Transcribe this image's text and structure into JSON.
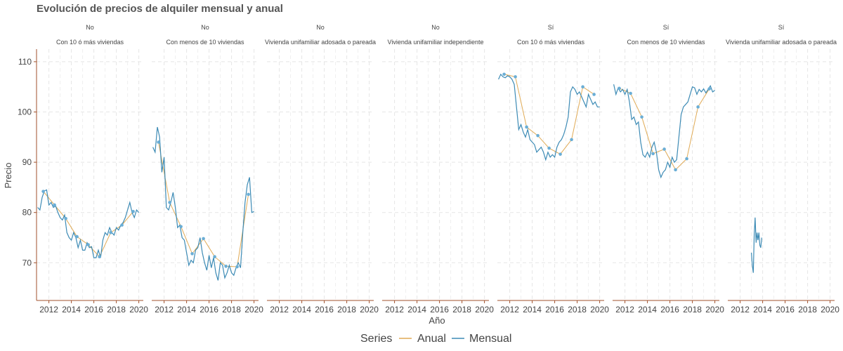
{
  "chart_data": {
    "type": "line",
    "title": "Evolución de precios de alquiler mensual y anual",
    "xlabel": "Año",
    "ylabel": "Precio",
    "xlim": [
      2010.9,
      2020.4
    ],
    "ylim": [
      62.5,
      112.5
    ],
    "xticks": [
      2012,
      2014,
      2016,
      2018,
      2020
    ],
    "yticks": [
      70,
      80,
      90,
      100,
      110
    ],
    "grid": true,
    "legend": {
      "title": "Series",
      "position": "bottom",
      "entries": [
        {
          "name": "Anual",
          "color": "#E0AA55"
        },
        {
          "name": "Mensual",
          "color": "#3D8BB5"
        }
      ]
    },
    "colors": {
      "anual": "#E0AA55",
      "mensual": "#3D8BB5",
      "point": "#6AAED6",
      "axis": "#A0522D",
      "grid": "#E5E5E5"
    },
    "panels": [
      {
        "row1": "No",
        "row2": "Con 10 ó más viviendas",
        "anual": {
          "x": [
            2011.5,
            2012.5,
            2013.5,
            2014.5,
            2015.5,
            2016.5,
            2017.5,
            2018.5,
            2019.5
          ],
          "y": [
            84.2,
            81.5,
            78.8,
            75.2,
            73.6,
            71.2,
            76.0,
            77.5,
            80.2
          ]
        },
        "mensual": {
          "x": [
            2011.0,
            2011.2,
            2011.4,
            2011.6,
            2011.8,
            2012.0,
            2012.2,
            2012.4,
            2012.6,
            2012.8,
            2013.0,
            2013.2,
            2013.4,
            2013.6,
            2013.8,
            2014.0,
            2014.2,
            2014.4,
            2014.6,
            2014.8,
            2015.0,
            2015.2,
            2015.4,
            2015.6,
            2015.8,
            2016.0,
            2016.2,
            2016.4,
            2016.6,
            2016.8,
            2017.0,
            2017.2,
            2017.4,
            2017.6,
            2017.8,
            2018.0,
            2018.2,
            2018.4,
            2018.6,
            2018.8,
            2019.0,
            2019.2,
            2019.4,
            2019.6,
            2019.8,
            2020.0
          ],
          "y": [
            81.0,
            80.5,
            83.0,
            84.3,
            84.5,
            81.5,
            82.0,
            81.0,
            81.3,
            80.0,
            79.0,
            78.5,
            79.5,
            76.0,
            75.0,
            74.5,
            76.0,
            75.0,
            73.0,
            74.5,
            72.5,
            72.5,
            74.0,
            73.0,
            73.2,
            71.0,
            71.0,
            72.5,
            71.0,
            74.5,
            76.0,
            75.5,
            77.0,
            76.0,
            75.5,
            77.0,
            76.5,
            77.5,
            78.0,
            79.0,
            80.5,
            82.0,
            80.0,
            79.0,
            80.5,
            80.0
          ]
        }
      },
      {
        "row1": "No",
        "row2": "Con menos de 10 viviendas",
        "anual": {
          "x": [
            2011.5,
            2012.5,
            2013.5,
            2014.5,
            2015.5,
            2016.5,
            2017.5,
            2018.5,
            2019.5
          ],
          "y": [
            94.0,
            82.0,
            77.2,
            71.8,
            74.8,
            71.2,
            69.3,
            69.2,
            83.6
          ]
        },
        "mensual": {
          "x": [
            2011.0,
            2011.2,
            2011.4,
            2011.6,
            2011.8,
            2012.0,
            2012.2,
            2012.4,
            2012.6,
            2012.8,
            2013.0,
            2013.2,
            2013.4,
            2013.6,
            2013.8,
            2014.0,
            2014.2,
            2014.4,
            2014.6,
            2014.8,
            2015.0,
            2015.2,
            2015.4,
            2015.6,
            2015.8,
            2016.0,
            2016.2,
            2016.4,
            2016.6,
            2016.8,
            2017.0,
            2017.2,
            2017.4,
            2017.6,
            2017.8,
            2018.0,
            2018.2,
            2018.4,
            2018.6,
            2018.8,
            2019.0,
            2019.2,
            2019.4,
            2019.6,
            2019.8,
            2020.0
          ],
          "y": [
            93.0,
            92.0,
            97.0,
            95.0,
            88.0,
            91.0,
            81.0,
            80.5,
            82.0,
            84.0,
            81.0,
            77.0,
            77.5,
            75.0,
            74.5,
            72.0,
            69.5,
            70.5,
            70.0,
            72.5,
            73.0,
            75.0,
            72.0,
            70.0,
            68.5,
            71.5,
            69.0,
            71.0,
            68.0,
            66.5,
            70.0,
            69.5,
            67.0,
            68.0,
            69.5,
            68.0,
            67.5,
            69.0,
            70.0,
            69.0,
            76.0,
            82.0,
            85.5,
            87.0,
            80.0,
            80.2
          ]
        }
      },
      {
        "row1": "No",
        "row2": "Vivienda unifamiliar adosada o pareada",
        "anual": {
          "x": [],
          "y": []
        },
        "mensual": {
          "x": [],
          "y": []
        }
      },
      {
        "row1": "No",
        "row2": "Vivienda unifamiliar independiente",
        "anual": {
          "x": [],
          "y": []
        },
        "mensual": {
          "x": [],
          "y": []
        }
      },
      {
        "row1": "Sí",
        "row2": "Con 10 ó más viviendas",
        "anual": {
          "x": [
            2011.5,
            2012.5,
            2013.5,
            2014.5,
            2015.5,
            2016.5,
            2017.5,
            2018.5,
            2019.5
          ],
          "y": [
            107.5,
            107.0,
            97.0,
            95.3,
            92.8,
            91.6,
            94.5,
            105.0,
            103.5
          ]
        },
        "mensual": {
          "x": [
            2011.0,
            2011.2,
            2011.4,
            2011.6,
            2011.8,
            2012.0,
            2012.2,
            2012.4,
            2012.6,
            2012.8,
            2013.0,
            2013.2,
            2013.4,
            2013.6,
            2013.8,
            2014.0,
            2014.2,
            2014.4,
            2014.6,
            2014.8,
            2015.0,
            2015.2,
            2015.4,
            2015.6,
            2015.8,
            2016.0,
            2016.2,
            2016.4,
            2016.6,
            2016.8,
            2017.0,
            2017.2,
            2017.4,
            2017.6,
            2017.8,
            2018.0,
            2018.2,
            2018.4,
            2018.6,
            2018.8,
            2019.0,
            2019.2,
            2019.4,
            2019.6,
            2019.8,
            2020.0
          ],
          "y": [
            106.5,
            107.5,
            107.0,
            106.8,
            107.2,
            107.0,
            106.5,
            105.5,
            101.0,
            96.5,
            97.5,
            96.0,
            95.0,
            96.5,
            94.5,
            94.0,
            93.5,
            92.0,
            92.5,
            93.0,
            92.0,
            90.5,
            92.0,
            91.0,
            91.5,
            91.0,
            93.0,
            94.0,
            94.5,
            95.5,
            97.0,
            99.0,
            104.0,
            105.0,
            104.5,
            103.5,
            104.0,
            103.0,
            102.0,
            101.0,
            103.5,
            102.5,
            101.5,
            102.0,
            101.0,
            101.0
          ]
        }
      },
      {
        "row1": "Sí",
        "row2": "Con menos de 10 viviendas",
        "anual": {
          "x": [
            2011.5,
            2012.5,
            2013.5,
            2014.5,
            2015.5,
            2016.5,
            2017.5,
            2018.5,
            2019.5
          ],
          "y": [
            104.7,
            103.7,
            99.0,
            91.7,
            92.6,
            88.5,
            90.7,
            101.0,
            104.6
          ]
        },
        "mensual": {
          "x": [
            2011.0,
            2011.2,
            2011.4,
            2011.6,
            2011.8,
            2012.0,
            2012.2,
            2012.4,
            2012.6,
            2012.8,
            2013.0,
            2013.2,
            2013.4,
            2013.6,
            2013.8,
            2014.0,
            2014.2,
            2014.4,
            2014.6,
            2014.8,
            2015.0,
            2015.2,
            2015.4,
            2015.6,
            2015.8,
            2016.0,
            2016.2,
            2016.4,
            2016.6,
            2016.8,
            2017.0,
            2017.2,
            2017.4,
            2017.6,
            2017.8,
            2018.0,
            2018.2,
            2018.4,
            2018.6,
            2018.8,
            2019.0,
            2019.2,
            2019.4,
            2019.6,
            2019.8,
            2020.0
          ],
          "y": [
            105.5,
            103.5,
            104.8,
            104.0,
            104.5,
            103.5,
            104.5,
            102.0,
            98.5,
            99.0,
            97.5,
            98.0,
            94.0,
            91.5,
            91.0,
            92.0,
            91.0,
            93.0,
            94.0,
            92.0,
            88.5,
            87.0,
            88.0,
            88.5,
            90.0,
            89.0,
            91.0,
            90.0,
            90.5,
            95.0,
            99.5,
            101.0,
            101.5,
            102.0,
            103.5,
            105.0,
            104.8,
            103.5,
            104.5,
            104.0,
            104.6,
            103.8,
            104.5,
            105.2,
            104.0,
            104.3
          ]
        }
      },
      {
        "row1": "Sí",
        "row2": "Vivienda unifamiliar adosada o pareada",
        "anual": {
          "x": [],
          "y": []
        },
        "mensual": {
          "x": [
            2013.0,
            2013.08,
            2013.17,
            2013.25,
            2013.33,
            2013.42,
            2013.5,
            2013.58,
            2013.67,
            2013.75,
            2013.83,
            2013.92
          ],
          "y": [
            72.0,
            69.5,
            68.0,
            75.5,
            79.0,
            74.0,
            76.0,
            74.5,
            76.0,
            73.5,
            73.0,
            75.0
          ]
        }
      }
    ]
  }
}
